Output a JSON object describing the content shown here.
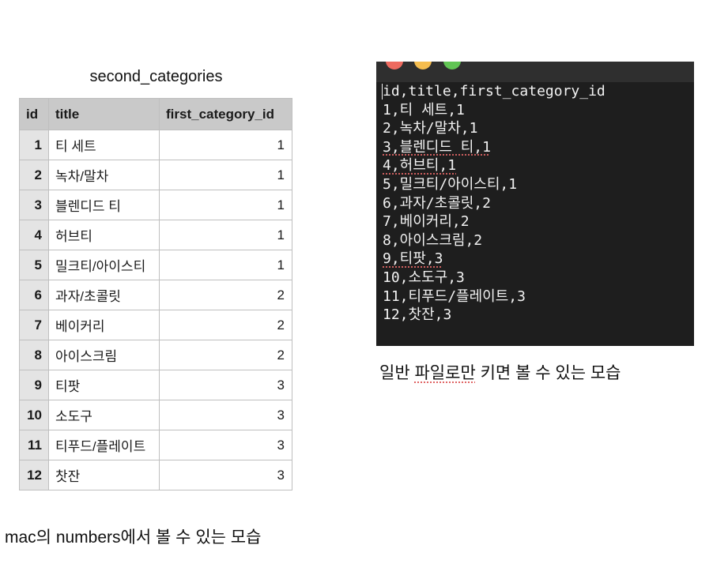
{
  "numbers": {
    "title": "second_categories",
    "columns": [
      "id",
      "title",
      "first_category_id"
    ],
    "rows": [
      [
        "1",
        "티 세트",
        "1"
      ],
      [
        "2",
        "녹차/말차",
        "1"
      ],
      [
        "3",
        "블렌디드 티",
        "1"
      ],
      [
        "4",
        "허브티",
        "1"
      ],
      [
        "5",
        "밀크티/아이스티",
        "1"
      ],
      [
        "6",
        "과자/초콜릿",
        "2"
      ],
      [
        "7",
        "베이커리",
        "2"
      ],
      [
        "8",
        "아이스크림",
        "2"
      ],
      [
        "9",
        "티팟",
        "3"
      ],
      [
        "10",
        "소도구",
        "3"
      ],
      [
        "11",
        "티푸드/플레이트",
        "3"
      ],
      [
        "12",
        "찻잔",
        "3"
      ]
    ],
    "caption": "mac의 numbers에서 볼 수 있는 모습"
  },
  "terminal": {
    "lines": [
      "id,title,first_category_id",
      "1,티 세트,1",
      "2,녹차/말차,1",
      "3,블렌디드 티,1",
      "4,허브티,1",
      "5,밀크티/아이스티,1",
      "6,과자/초콜릿,2",
      "7,베이커리,2",
      "8,아이스크림,2",
      "9,티팟,3",
      "10,소도구,3",
      "11,티푸드/플레이트,3",
      "12,찻잔,3"
    ],
    "caption_parts": [
      "일반 ",
      "파일로만",
      " 키면 볼 수 있는 모습"
    ],
    "window_buttons": [
      "close",
      "minimize",
      "zoom"
    ],
    "colors": {
      "close": "#ee6a5f",
      "minimize": "#f5bd4f",
      "zoom": "#61c554",
      "background": "#1e1e1e"
    }
  }
}
